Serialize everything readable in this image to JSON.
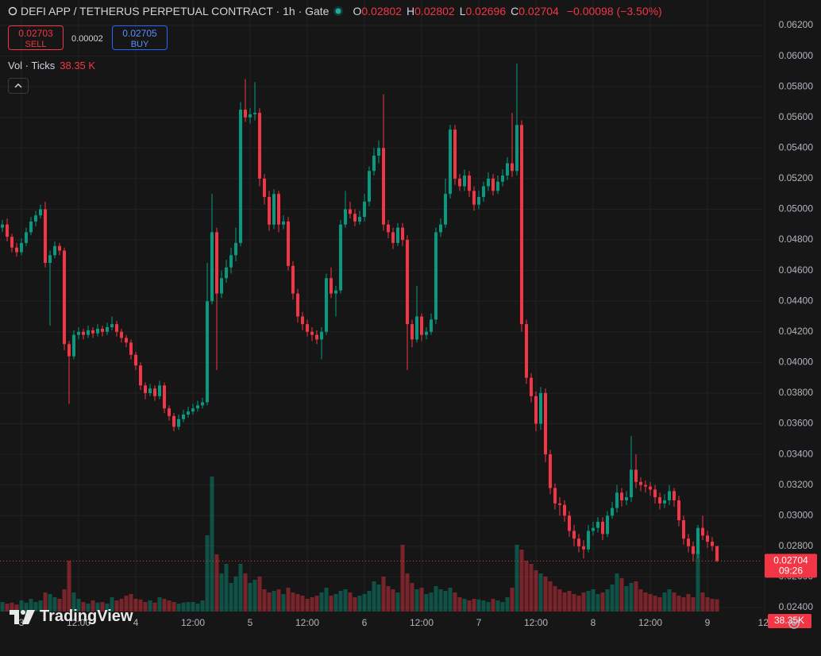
{
  "header": {
    "title": "DEFI APP / TETHERUS PERPETUAL CONTRACT · 1h · Gate",
    "legend": [
      {
        "label": "O",
        "value": 0.02802
      },
      {
        "label": "H",
        "value": 0.02802
      },
      {
        "label": "L",
        "value": 0.02696
      },
      {
        "label": "C",
        "value": 0.02704
      }
    ],
    "change": "−0.00098 (−3.50%)",
    "sell_price": 0.02703,
    "sell_label": "SELL",
    "spread": 2e-05,
    "buy_price": 0.02705,
    "buy_label": "BUY",
    "volume_title": "Vol · Ticks",
    "volume_legend": "38.35 K",
    "watermark": "TradingView"
  },
  "chart_data": {
    "type": "candlestick",
    "colors": {
      "up": "#089981",
      "down": "#f23645"
    },
    "grid": true,
    "ylim": [
      0.024,
      0.062
    ],
    "yticks": [
      {
        "value": 0.062,
        "label": "0.06200"
      },
      {
        "value": 0.06,
        "label": "0.06000"
      },
      {
        "value": 0.058,
        "label": "0.05800"
      },
      {
        "value": 0.056,
        "label": "0.05600"
      },
      {
        "value": 0.054,
        "label": "0.05400"
      },
      {
        "value": 0.052,
        "label": "0.05200"
      },
      {
        "value": 0.05,
        "label": "0.05000"
      },
      {
        "value": 0.048,
        "label": "0.04800"
      },
      {
        "value": 0.046,
        "label": "0.04600"
      },
      {
        "value": 0.044,
        "label": "0.04400"
      },
      {
        "value": 0.042,
        "label": "0.04200"
      },
      {
        "value": 0.04,
        "label": "0.04000"
      },
      {
        "value": 0.038,
        "label": "0.03800"
      },
      {
        "value": 0.036,
        "label": "0.03600"
      },
      {
        "value": 0.034,
        "label": "0.03400"
      },
      {
        "value": 0.032,
        "label": "0.03200"
      },
      {
        "value": 0.03,
        "label": "0.03000"
      },
      {
        "value": 0.028,
        "label": "0.02800"
      },
      {
        "value": 0.026,
        "label": "0.02600"
      },
      {
        "value": 0.024,
        "label": "0.02400"
      }
    ],
    "xticks": [
      {
        "value": 4,
        "label": "3"
      },
      {
        "value": 16,
        "label": "12:00"
      },
      {
        "value": 28,
        "label": "4"
      },
      {
        "value": 40,
        "label": "12:00"
      },
      {
        "value": 52,
        "label": "5"
      },
      {
        "value": 64,
        "label": "12:00"
      },
      {
        "value": 76,
        "label": "6"
      },
      {
        "value": 88,
        "label": "12:00"
      },
      {
        "value": 100,
        "label": "7"
      },
      {
        "value": 112,
        "label": "12:00"
      },
      {
        "value": 124,
        "label": "8"
      },
      {
        "value": 136,
        "label": "12:00"
      },
      {
        "value": 148,
        "label": "9"
      },
      {
        "value": 160,
        "label": "12:"
      }
    ],
    "last_price": 0.02704,
    "countdown": "09:26",
    "volume_label": "38.35K",
    "ohlc": [
      [
        0.0488,
        0.0493,
        0.0485,
        0.049
      ],
      [
        0.049,
        0.0494,
        0.0479,
        0.0482
      ],
      [
        0.0482,
        0.0484,
        0.0472,
        0.0475
      ],
      [
        0.0475,
        0.0478,
        0.0469,
        0.0472
      ],
      [
        0.0472,
        0.0481,
        0.047,
        0.0478
      ],
      [
        0.0478,
        0.0488,
        0.0476,
        0.0485
      ],
      [
        0.0485,
        0.0495,
        0.0483,
        0.0492
      ],
      [
        0.0492,
        0.0499,
        0.0489,
        0.0496
      ],
      [
        0.0496,
        0.0503,
        0.0494,
        0.05
      ],
      [
        0.05,
        0.0505,
        0.0462,
        0.0465
      ],
      [
        0.0465,
        0.0473,
        0.0424,
        0.047
      ],
      [
        0.047,
        0.0479,
        0.0468,
        0.0476
      ],
      [
        0.0476,
        0.0478,
        0.047,
        0.0473
      ],
      [
        0.0473,
        0.0475,
        0.0408,
        0.0412
      ],
      [
        0.0412,
        0.0414,
        0.0373,
        0.0404
      ],
      [
        0.0404,
        0.0421,
        0.0402,
        0.0418
      ],
      [
        0.0418,
        0.0423,
        0.0415,
        0.042
      ],
      [
        0.042,
        0.0422,
        0.0415,
        0.0418
      ],
      [
        0.0418,
        0.0424,
        0.0416,
        0.0421
      ],
      [
        0.0421,
        0.0423,
        0.0416,
        0.0419
      ],
      [
        0.0419,
        0.0425,
        0.0417,
        0.0422
      ],
      [
        0.0422,
        0.0424,
        0.0417,
        0.042
      ],
      [
        0.042,
        0.0426,
        0.0418,
        0.0423
      ],
      [
        0.0423,
        0.043,
        0.0421,
        0.0425
      ],
      [
        0.0425,
        0.0427,
        0.0417,
        0.042
      ],
      [
        0.042,
        0.0422,
        0.0413,
        0.0416
      ],
      [
        0.0416,
        0.0418,
        0.041,
        0.0413
      ],
      [
        0.0413,
        0.0415,
        0.0402,
        0.0405
      ],
      [
        0.0405,
        0.0407,
        0.0395,
        0.0398
      ],
      [
        0.0398,
        0.04,
        0.0382,
        0.0385
      ],
      [
        0.0385,
        0.0387,
        0.0376,
        0.038
      ],
      [
        0.038,
        0.0386,
        0.0378,
        0.0383
      ],
      [
        0.0383,
        0.0385,
        0.0375,
        0.0378
      ],
      [
        0.0378,
        0.0388,
        0.0376,
        0.0385
      ],
      [
        0.0385,
        0.0387,
        0.0367,
        0.037
      ],
      [
        0.037,
        0.0372,
        0.0362,
        0.0365
      ],
      [
        0.0365,
        0.0367,
        0.0355,
        0.0358
      ],
      [
        0.0358,
        0.0366,
        0.0356,
        0.0363
      ],
      [
        0.0363,
        0.0369,
        0.0361,
        0.0366
      ],
      [
        0.0366,
        0.0371,
        0.0364,
        0.0368
      ],
      [
        0.0368,
        0.0373,
        0.0366,
        0.037
      ],
      [
        0.037,
        0.0375,
        0.0368,
        0.0372
      ],
      [
        0.0372,
        0.0377,
        0.037,
        0.0374
      ],
      [
        0.0374,
        0.0465,
        0.0372,
        0.044
      ],
      [
        0.044,
        0.051,
        0.0438,
        0.0485
      ],
      [
        0.0485,
        0.0488,
        0.0395,
        0.0445
      ],
      [
        0.0445,
        0.046,
        0.0442,
        0.0455
      ],
      [
        0.0455,
        0.0467,
        0.0452,
        0.0462
      ],
      [
        0.0462,
        0.0475,
        0.0458,
        0.047
      ],
      [
        0.047,
        0.0488,
        0.0466,
        0.0478
      ],
      [
        0.0478,
        0.057,
        0.0476,
        0.0565
      ],
      [
        0.0565,
        0.0585,
        0.0557,
        0.056
      ],
      [
        0.056,
        0.0566,
        0.0556,
        0.0562
      ],
      [
        0.0562,
        0.0583,
        0.0558,
        0.0563
      ],
      [
        0.0563,
        0.0566,
        0.0515,
        0.052
      ],
      [
        0.052,
        0.0523,
        0.0503,
        0.0508
      ],
      [
        0.0508,
        0.0512,
        0.0486,
        0.049
      ],
      [
        0.049,
        0.0513,
        0.0487,
        0.051
      ],
      [
        0.051,
        0.0512,
        0.0485,
        0.049
      ],
      [
        0.049,
        0.0496,
        0.0487,
        0.0492
      ],
      [
        0.0492,
        0.0495,
        0.046,
        0.0463
      ],
      [
        0.0463,
        0.0466,
        0.0441,
        0.0445
      ],
      [
        0.0445,
        0.0448,
        0.0426,
        0.043
      ],
      [
        0.043,
        0.0433,
        0.0421,
        0.0425
      ],
      [
        0.0425,
        0.0428,
        0.0417,
        0.042
      ],
      [
        0.042,
        0.0423,
        0.0414,
        0.0418
      ],
      [
        0.0418,
        0.0421,
        0.0412,
        0.0415
      ],
      [
        0.0415,
        0.0423,
        0.0402,
        0.042
      ],
      [
        0.042,
        0.0458,
        0.0418,
        0.0455
      ],
      [
        0.0455,
        0.0462,
        0.0442,
        0.0445
      ],
      [
        0.0445,
        0.045,
        0.043,
        0.0447
      ],
      [
        0.0447,
        0.0493,
        0.0445,
        0.049
      ],
      [
        0.049,
        0.0512,
        0.0488,
        0.05
      ],
      [
        0.05,
        0.0505,
        0.0494,
        0.0497
      ],
      [
        0.0497,
        0.05,
        0.0489,
        0.0492
      ],
      [
        0.0492,
        0.0499,
        0.049,
        0.0495
      ],
      [
        0.0495,
        0.051,
        0.0492,
        0.0505
      ],
      [
        0.0505,
        0.0528,
        0.0502,
        0.0525
      ],
      [
        0.0525,
        0.054,
        0.0522,
        0.0535
      ],
      [
        0.0535,
        0.0545,
        0.053,
        0.054
      ],
      [
        0.054,
        0.0575,
        0.0486,
        0.049
      ],
      [
        0.049,
        0.0493,
        0.0481,
        0.0485
      ],
      [
        0.0485,
        0.0488,
        0.0474,
        0.0478
      ],
      [
        0.0478,
        0.0491,
        0.0476,
        0.0488
      ],
      [
        0.0488,
        0.0491,
        0.0476,
        0.048
      ],
      [
        0.048,
        0.0483,
        0.0395,
        0.0425
      ],
      [
        0.0425,
        0.0428,
        0.041,
        0.0415
      ],
      [
        0.0415,
        0.045,
        0.0413,
        0.043
      ],
      [
        0.043,
        0.0432,
        0.0414,
        0.0418
      ],
      [
        0.0418,
        0.0423,
        0.0415,
        0.042
      ],
      [
        0.042,
        0.0432,
        0.0418,
        0.0428
      ],
      [
        0.0428,
        0.0488,
        0.0425,
        0.0485
      ],
      [
        0.0485,
        0.0494,
        0.0482,
        0.049
      ],
      [
        0.049,
        0.052,
        0.0488,
        0.051
      ],
      [
        0.051,
        0.0555,
        0.0507,
        0.0552
      ],
      [
        0.0552,
        0.0555,
        0.0516,
        0.052
      ],
      [
        0.052,
        0.0523,
        0.0512,
        0.0515
      ],
      [
        0.0515,
        0.0526,
        0.0512,
        0.0522
      ],
      [
        0.0522,
        0.0525,
        0.0508,
        0.0512
      ],
      [
        0.0512,
        0.0515,
        0.0499,
        0.0503
      ],
      [
        0.0503,
        0.0512,
        0.05,
        0.0508
      ],
      [
        0.0508,
        0.0518,
        0.0505,
        0.0515
      ],
      [
        0.0515,
        0.0524,
        0.0512,
        0.052
      ],
      [
        0.052,
        0.0523,
        0.0509,
        0.0512
      ],
      [
        0.0512,
        0.0522,
        0.051,
        0.0518
      ],
      [
        0.0518,
        0.0526,
        0.0515,
        0.0522
      ],
      [
        0.0522,
        0.0534,
        0.0519,
        0.053
      ],
      [
        0.053,
        0.0563,
        0.0521,
        0.0525
      ],
      [
        0.0525,
        0.0595,
        0.0522,
        0.0555
      ],
      [
        0.0555,
        0.0558,
        0.042,
        0.0425
      ],
      [
        0.0425,
        0.0428,
        0.0386,
        0.039
      ],
      [
        0.039,
        0.0393,
        0.0374,
        0.0378
      ],
      [
        0.0378,
        0.0381,
        0.0355,
        0.036
      ],
      [
        0.036,
        0.0384,
        0.0356,
        0.038
      ],
      [
        0.038,
        0.0383,
        0.0335,
        0.034
      ],
      [
        0.034,
        0.0343,
        0.0314,
        0.0318
      ],
      [
        0.0318,
        0.0321,
        0.0304,
        0.0308
      ],
      [
        0.0308,
        0.0312,
        0.03,
        0.0307
      ],
      [
        0.0307,
        0.031,
        0.0296,
        0.03
      ],
      [
        0.03,
        0.0303,
        0.0286,
        0.029
      ],
      [
        0.029,
        0.0294,
        0.028,
        0.0285
      ],
      [
        0.0285,
        0.0288,
        0.0276,
        0.028
      ],
      [
        0.028,
        0.0284,
        0.0272,
        0.0278
      ],
      [
        0.0278,
        0.0294,
        0.0276,
        0.029
      ],
      [
        0.029,
        0.0296,
        0.0287,
        0.0292
      ],
      [
        0.0292,
        0.0299,
        0.0289,
        0.0296
      ],
      [
        0.0296,
        0.0299,
        0.0284,
        0.0288
      ],
      [
        0.0288,
        0.0303,
        0.0286,
        0.03
      ],
      [
        0.03,
        0.0309,
        0.0298,
        0.0305
      ],
      [
        0.0305,
        0.032,
        0.0302,
        0.0315
      ],
      [
        0.0315,
        0.0318,
        0.0306,
        0.031
      ],
      [
        0.031,
        0.0316,
        0.0307,
        0.0312
      ],
      [
        0.0312,
        0.0352,
        0.0309,
        0.033
      ],
      [
        0.033,
        0.034,
        0.0318,
        0.0322
      ],
      [
        0.0322,
        0.0325,
        0.0316,
        0.032
      ],
      [
        0.032,
        0.0323,
        0.0315,
        0.0319
      ],
      [
        0.0319,
        0.0322,
        0.0313,
        0.0317
      ],
      [
        0.0317,
        0.032,
        0.0308,
        0.0312
      ],
      [
        0.0312,
        0.0315,
        0.0304,
        0.0308
      ],
      [
        0.0308,
        0.0314,
        0.0305,
        0.031
      ],
      [
        0.031,
        0.032,
        0.0307,
        0.0316
      ],
      [
        0.0316,
        0.0318,
        0.0306,
        0.031
      ],
      [
        0.031,
        0.0313,
        0.0293,
        0.0297
      ],
      [
        0.0297,
        0.03,
        0.0281,
        0.0285
      ],
      [
        0.0285,
        0.0288,
        0.0276,
        0.028
      ],
      [
        0.028,
        0.0283,
        0.027,
        0.0275
      ],
      [
        0.0275,
        0.0294,
        0.0272,
        0.0292
      ],
      [
        0.0292,
        0.03,
        0.0284,
        0.0287
      ],
      [
        0.0287,
        0.029,
        0.0279,
        0.0283
      ],
      [
        0.0283,
        0.0286,
        0.0277,
        0.02802
      ],
      [
        0.02802,
        0.02802,
        0.02696,
        0.02704
      ]
    ],
    "volume": [
      30,
      25,
      28,
      22,
      35,
      28,
      40,
      30,
      35,
      60,
      55,
      45,
      40,
      70,
      160,
      60,
      40,
      30,
      25,
      35,
      28,
      30,
      25,
      45,
      35,
      40,
      50,
      55,
      40,
      38,
      30,
      35,
      28,
      45,
      40,
      35,
      30,
      25,
      28,
      30,
      30,
      25,
      35,
      240,
      425,
      180,
      120,
      150,
      90,
      110,
      150,
      120,
      90,
      100,
      110,
      70,
      60,
      65,
      70,
      55,
      75,
      60,
      55,
      50,
      40,
      45,
      50,
      60,
      75,
      50,
      55,
      65,
      70,
      60,
      45,
      50,
      55,
      65,
      95,
      85,
      110,
      80,
      70,
      60,
      210,
      120,
      90,
      70,
      75,
      55,
      60,
      80,
      70,
      65,
      75,
      60,
      45,
      40,
      35,
      40,
      38,
      35,
      30,
      40,
      35,
      30,
      45,
      75,
      210,
      195,
      160,
      150,
      130,
      120,
      110,
      95,
      80,
      70,
      60,
      65,
      55,
      50,
      60,
      65,
      70,
      55,
      60,
      70,
      85,
      120,
      105,
      80,
      90,
      95,
      70,
      60,
      55,
      50,
      45,
      60,
      70,
      60,
      50,
      45,
      55,
      45,
      190,
      60,
      45,
      40,
      38.35
    ]
  }
}
